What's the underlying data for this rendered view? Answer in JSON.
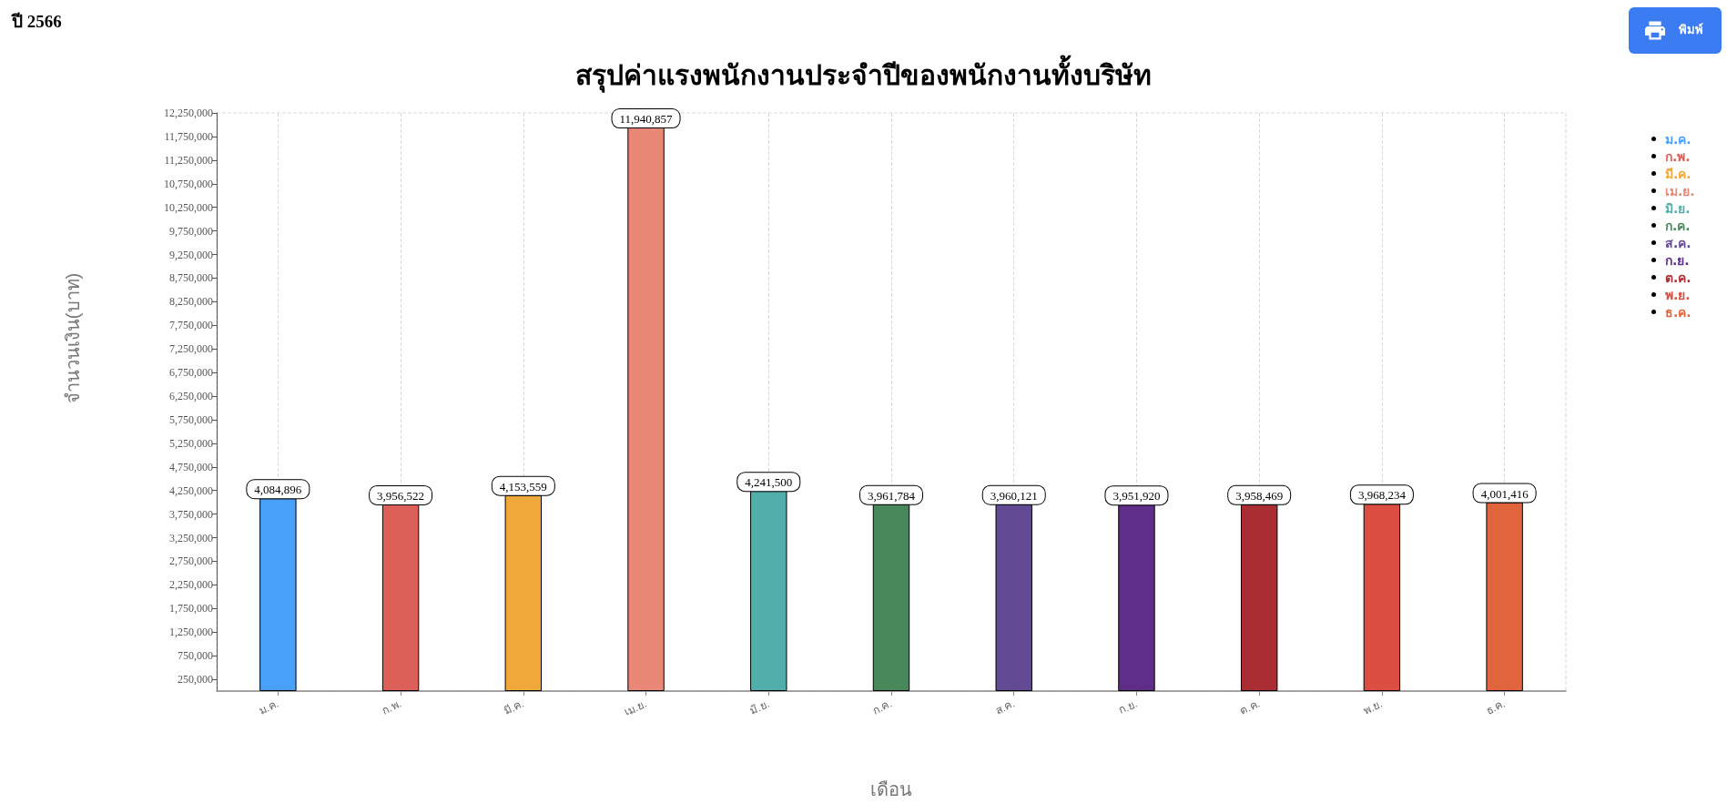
{
  "chart_data": {
    "type": "bar",
    "title": "สรุปค่าแรงพนักงานประจำปีของพนักงานทั้งบริษัท",
    "subtitle": "ปี 2566",
    "xlabel": "เดือน",
    "ylabel": "จำนวนเงิน(บาท)",
    "annotations": [
      "พิมพ์"
    ],
    "categories": [
      "ม.ค.",
      "ก.พ.",
      "มี.ค.",
      "เม.ย.",
      "มิ.ย.",
      "ก.ค.",
      "ส.ค.",
      "ก.ย.",
      "ต.ค.",
      "พ.ย.",
      "ธ.ค."
    ],
    "series": [
      {
        "name": "ม.ค.",
        "color": "#48a0f8",
        "values": [
          4084896,
          null,
          null,
          null,
          null,
          null,
          null,
          null,
          null,
          null,
          null
        ],
        "value_labels": [
          "4,084,896",
          null,
          null,
          null,
          null,
          null,
          null,
          null,
          null,
          null,
          null
        ]
      },
      {
        "name": "ก.พ.",
        "color": "#dc5f58",
        "values": [
          null,
          3956522,
          null,
          null,
          null,
          null,
          null,
          null,
          null,
          null,
          null
        ],
        "value_labels": [
          null,
          "3,956,522",
          null,
          null,
          null,
          null,
          null,
          null,
          null,
          null,
          null
        ]
      },
      {
        "name": "มี.ค.",
        "color": "#f0a83b",
        "values": [
          null,
          null,
          4153559,
          null,
          null,
          null,
          null,
          null,
          null,
          null,
          null
        ],
        "value_labels": [
          null,
          null,
          "4,153,559",
          null,
          null,
          null,
          null,
          null,
          null,
          null,
          null
        ]
      },
      {
        "name": "เม.ย.",
        "color": "#ea8877",
        "values": [
          null,
          null,
          null,
          11940857,
          null,
          null,
          null,
          null,
          null,
          null,
          null
        ],
        "value_labels": [
          null,
          null,
          null,
          "11,940,857",
          null,
          null,
          null,
          null,
          null,
          null,
          null
        ]
      },
      {
        "name": "มิ.ย.",
        "color": "#52aea8",
        "values": [
          null,
          null,
          null,
          null,
          4241500,
          null,
          null,
          null,
          null,
          null,
          null
        ],
        "value_labels": [
          null,
          null,
          null,
          null,
          "4,241,500",
          null,
          null,
          null,
          null,
          null,
          null
        ]
      },
      {
        "name": "ก.ค.",
        "color": "#48895c",
        "values": [
          null,
          null,
          null,
          null,
          null,
          3961784,
          null,
          null,
          null,
          null,
          null
        ],
        "value_labels": [
          null,
          null,
          null,
          null,
          null,
          "3,961,784",
          null,
          null,
          null,
          null,
          null
        ]
      },
      {
        "name": "ส.ค.",
        "color": "#634a95",
        "values": [
          null,
          null,
          null,
          null,
          null,
          null,
          3960121,
          null,
          null,
          null,
          null
        ],
        "value_labels": [
          null,
          null,
          null,
          null,
          null,
          null,
          "3,960,121",
          null,
          null,
          null,
          null
        ]
      },
      {
        "name": "ก.ย.",
        "color": "#5f2e88",
        "values": [
          null,
          null,
          null,
          null,
          null,
          null,
          null,
          3951920,
          null,
          null,
          null
        ],
        "value_labels": [
          null,
          null,
          null,
          null,
          null,
          null,
          null,
          "3,951,920",
          null,
          null,
          null
        ]
      },
      {
        "name": "ต.ค.",
        "color": "#aa2d33",
        "values": [
          null,
          null,
          null,
          null,
          null,
          null,
          null,
          null,
          3958469,
          null,
          null
        ],
        "value_labels": [
          null,
          null,
          null,
          null,
          null,
          null,
          null,
          null,
          "3,958,469",
          null,
          null
        ]
      },
      {
        "name": "พ.ย.",
        "color": "#dc4e42",
        "values": [
          null,
          null,
          null,
          null,
          null,
          null,
          null,
          null,
          null,
          3968234,
          null
        ],
        "value_labels": [
          null,
          null,
          null,
          null,
          null,
          null,
          null,
          null,
          null,
          "3,968,234",
          null
        ]
      },
      {
        "name": "ธ.ค.",
        "color": "#e0653c",
        "values": [
          null,
          null,
          null,
          null,
          null,
          null,
          null,
          null,
          null,
          null,
          4001416
        ],
        "value_labels": [
          null,
          null,
          null,
          null,
          null,
          null,
          null,
          null,
          null,
          null,
          "4,001,416"
        ]
      }
    ],
    "ylim": [
      0,
      12250000
    ],
    "yticks": [
      {
        "value": 250000,
        "label": "250,000"
      },
      {
        "value": 750000,
        "label": "750,000"
      },
      {
        "value": 1250000,
        "label": "1,250,000"
      },
      {
        "value": 1750000,
        "label": "1,750,000"
      },
      {
        "value": 2250000,
        "label": "2,250,000"
      },
      {
        "value": 2750000,
        "label": "2,750,000"
      },
      {
        "value": 3250000,
        "label": "3,250,000"
      },
      {
        "value": 3750000,
        "label": "3,750,000"
      },
      {
        "value": 4250000,
        "label": "4,250,000"
      },
      {
        "value": 4750000,
        "label": "4,750,000"
      },
      {
        "value": 5250000,
        "label": "5,250,000"
      },
      {
        "value": 5750000,
        "label": "5,750,000"
      },
      {
        "value": 6250000,
        "label": "6,250,000"
      },
      {
        "value": 6750000,
        "label": "6,750,000"
      },
      {
        "value": 7250000,
        "label": "7,250,000"
      },
      {
        "value": 7750000,
        "label": "7,750,000"
      },
      {
        "value": 8250000,
        "label": "8,250,000"
      },
      {
        "value": 8750000,
        "label": "8,750,000"
      },
      {
        "value": 9250000,
        "label": "9,250,000"
      },
      {
        "value": 9750000,
        "label": "9,750,000"
      },
      {
        "value": 10250000,
        "label": "10,250,000"
      },
      {
        "value": 10750000,
        "label": "10,750,000"
      },
      {
        "value": 11250000,
        "label": "11,250,000"
      },
      {
        "value": 11750000,
        "label": "11,750,000"
      },
      {
        "value": 12250000,
        "label": "12,250,000"
      }
    ],
    "grid": "x",
    "legend": "right"
  }
}
